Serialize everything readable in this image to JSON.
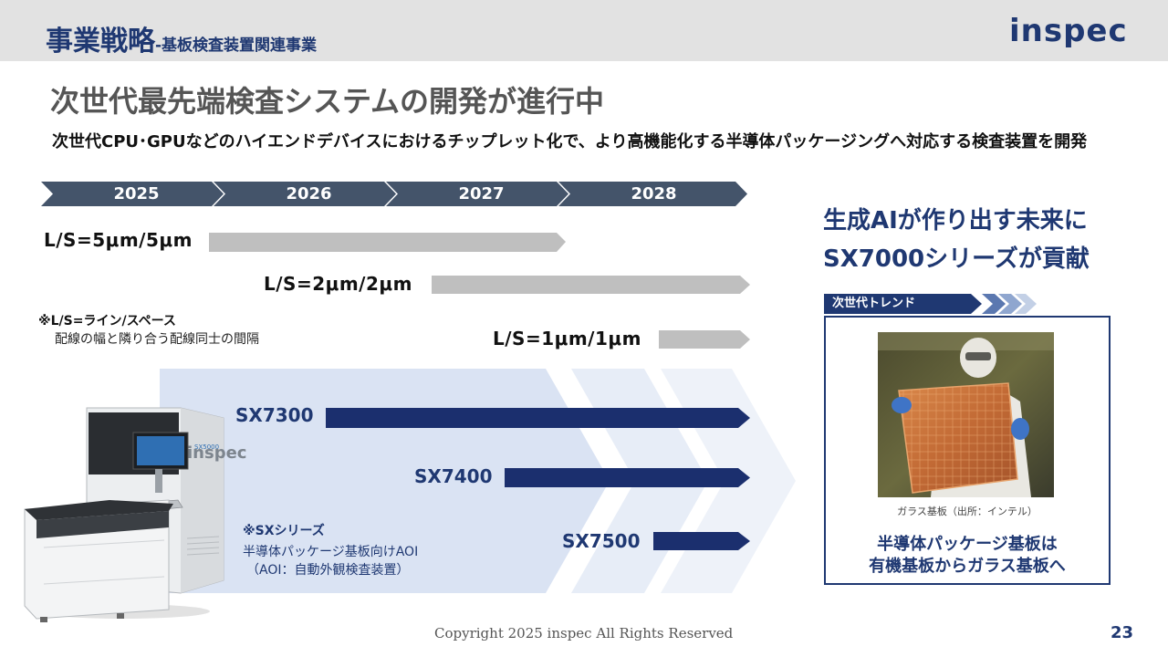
{
  "header": {
    "title": "事業戦略",
    "subtitle": "-基板検査装置関連事業",
    "logo_text": "inspec"
  },
  "headline": "次世代最先端検査システムの開発が進行中",
  "subline": "次世代CPU･GPUなどのハイエンドデバイスにおけるチップレット化で、より高機能化する半導体パッケージングへ対応する検査装置を開発",
  "timeline": {
    "years": [
      "2025",
      "2026",
      "2027",
      "2028"
    ]
  },
  "line_space": {
    "items": [
      "L/S=5μm/5μm",
      "L/S=2μm/2μm",
      "L/S=1μm/1μm"
    ],
    "note_title": "※L/S=ライン/スペース",
    "note_desc": "配線の幅と隣り合う配線同士の間隔"
  },
  "products": {
    "models": [
      "SX7300",
      "SX7400",
      "SX7500"
    ],
    "note_title": "※SXシリーズ",
    "note_line1": "半導体パッケージ基板向けAOI",
    "note_line2": "（AOI：自動外観検査装置）",
    "machine_brand": "inspec",
    "machine_model": "SX5000"
  },
  "ai_message": {
    "line1": "生成AIが作り出す未来に",
    "line2": "SX7000シリーズが貢献"
  },
  "trend": {
    "tab_label": "次世代トレンド",
    "caption": "ガラス基板（出所：インテル）",
    "message_line1": "半導体パッケージ基板は",
    "message_line2": "有機基板からガラス基板へ"
  },
  "footer": {
    "copyright": "Copyright 2025 inspec All Rights Reserved",
    "page_number": "23"
  },
  "colors": {
    "navy": "#1f3872",
    "slate": "#44546a",
    "gray_bar": "#bfbfbf",
    "light_blue": "#dae3f3",
    "header_bg": "#e2e2e2"
  }
}
